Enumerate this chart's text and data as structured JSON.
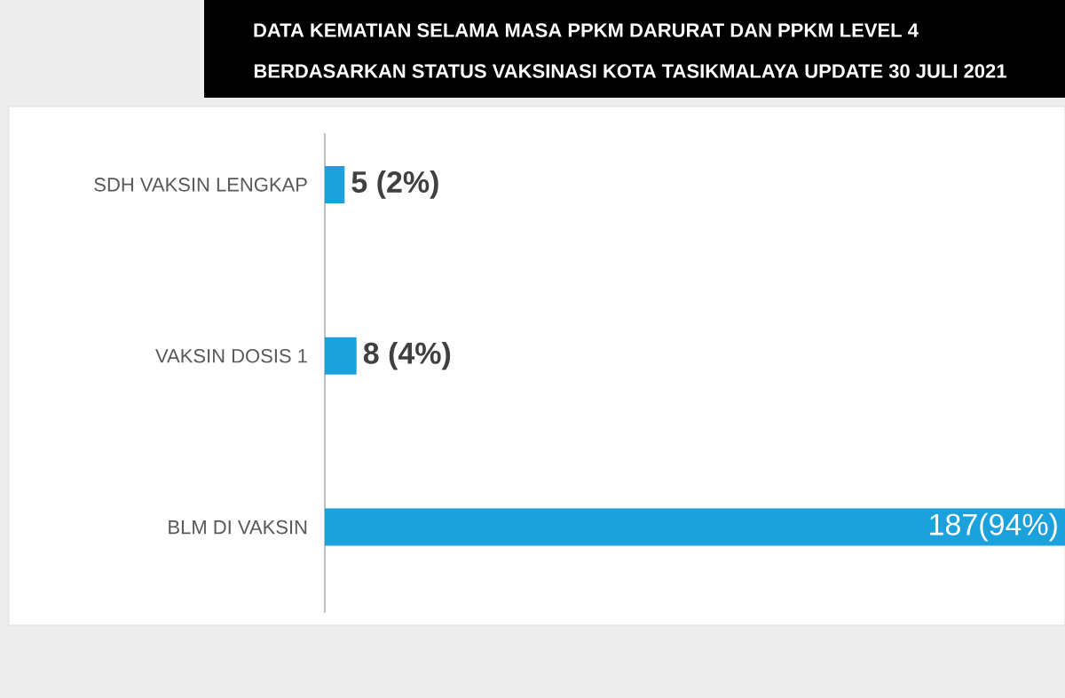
{
  "chart_data": {
    "type": "bar",
    "orientation": "horizontal",
    "title": "DATA KEMATIAN SELAMA MASA PPKM DARURAT DAN PPKM LEVEL 4",
    "subtitle": "BERDASARKAN STATUS VAKSINASI KOTA TASIKMALAYA UPDATE 30 JULI 2021",
    "categories": [
      "SDH VAKSIN LENGKAP",
      "VAKSIN DOSIS 1",
      "BLM DI VAKSIN"
    ],
    "values": [
      5,
      8,
      187
    ],
    "value_labels": [
      "5 (2%)",
      "8 (4%)",
      "187(94%)"
    ],
    "color": "#1ba1dc"
  }
}
